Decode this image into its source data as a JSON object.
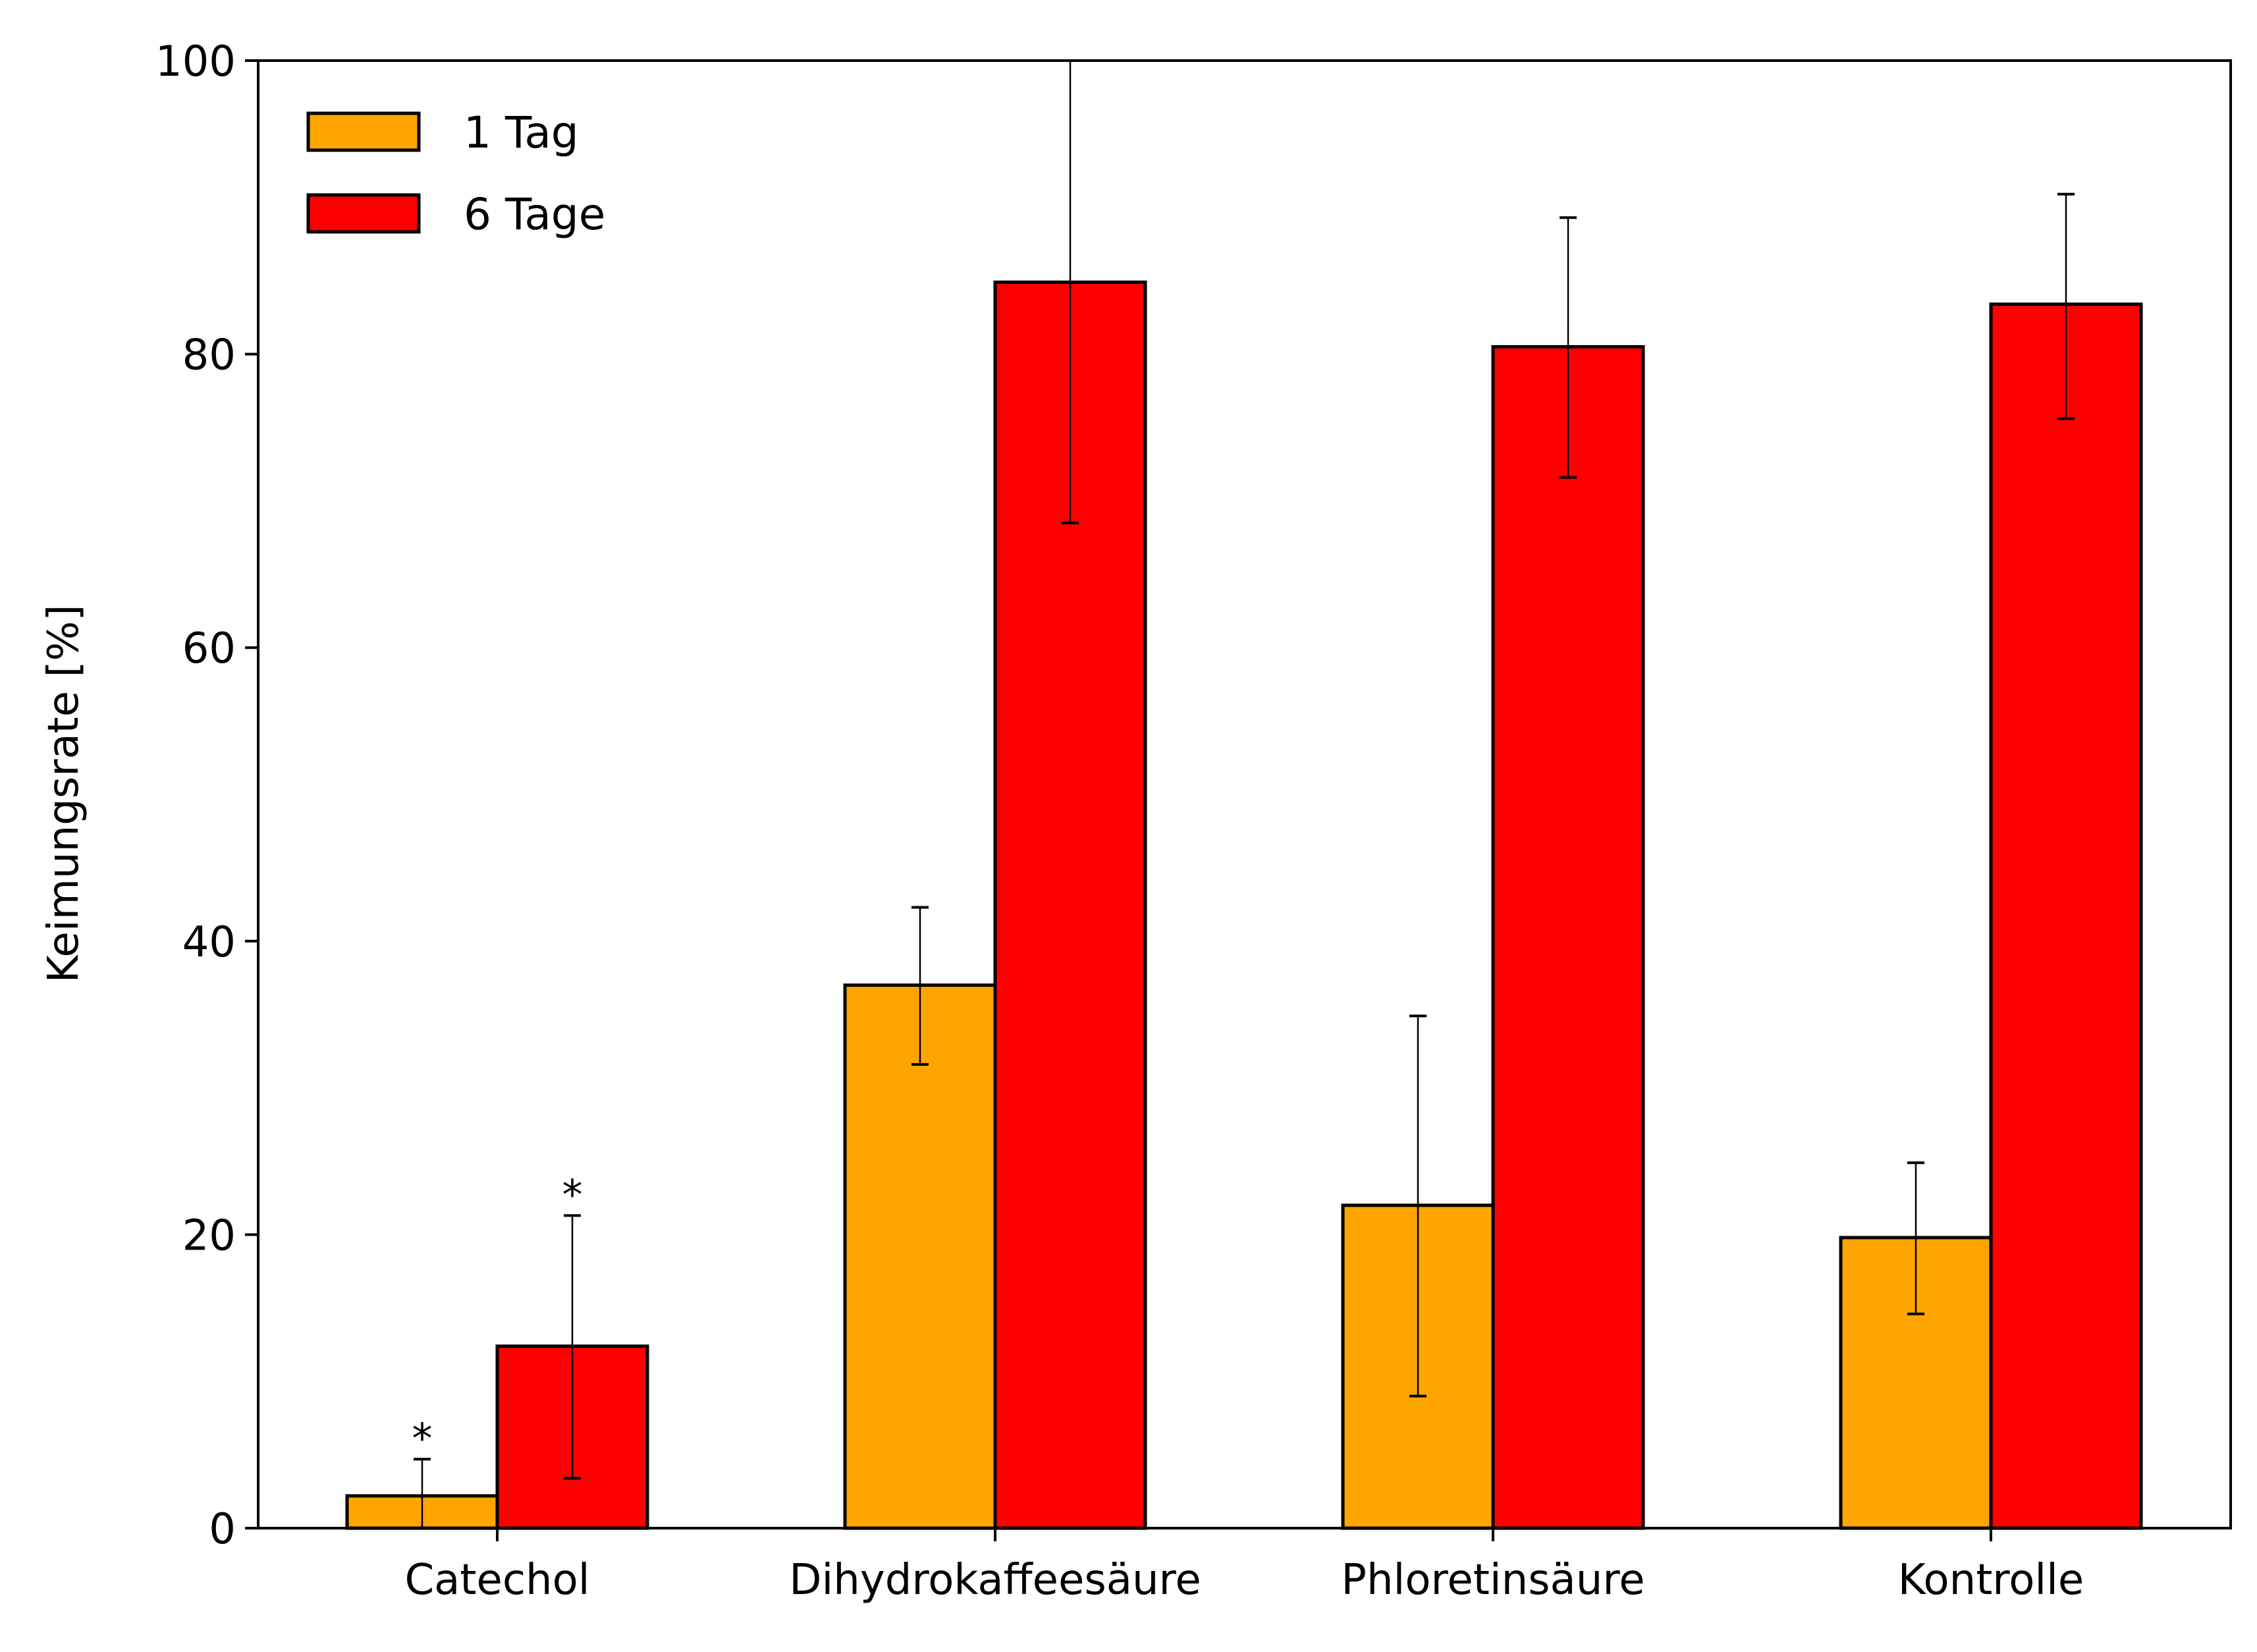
{
  "chart_data": {
    "type": "bar",
    "categories": [
      "Catechol",
      "Dihydrokaffeesäure",
      "Phloretinsäure",
      "Kontrolle"
    ],
    "series": [
      {
        "name": "1 Tag",
        "color": "#FFA500",
        "values": [
          2.2,
          37.0,
          22.0,
          19.8
        ],
        "error_low": [
          0.0,
          31.6,
          9.0,
          14.6
        ],
        "error_high": [
          4.7,
          42.3,
          34.9,
          24.9
        ],
        "significance": [
          "*",
          "",
          "",
          ""
        ]
      },
      {
        "name": "6 Tage",
        "color": "#FF0000",
        "values": [
          12.4,
          84.9,
          80.5,
          83.4
        ],
        "error_low": [
          3.4,
          68.5,
          71.6,
          75.6
        ],
        "error_high": [
          21.3,
          100.0,
          89.3,
          90.9
        ],
        "significance": [
          "*",
          "",
          "",
          ""
        ]
      }
    ],
    "title": "",
    "xlabel": "",
    "ylabel": "Keimungsrate [%]",
    "ylim": [
      0,
      100
    ],
    "yticks": [
      "0",
      "20",
      "40",
      "60",
      "80",
      "100"
    ],
    "grid": false,
    "legend_position": "top-left"
  }
}
